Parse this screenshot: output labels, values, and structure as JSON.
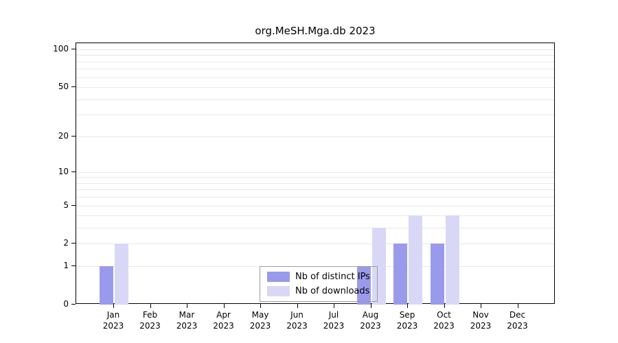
{
  "title": "org.MeSH.Mga.db 2023",
  "chart_data": {
    "type": "bar",
    "title": "org.MeSH.Mga.db 2023",
    "categories": [
      "Jan",
      "Feb",
      "Mar",
      "Apr",
      "May",
      "Jun",
      "Jul",
      "Aug",
      "Sep",
      "Oct",
      "Nov",
      "Dec"
    ],
    "year": "2023",
    "series": [
      {
        "name": "Nb of distinct IPs",
        "color": "#9a9aec",
        "values": [
          1,
          0,
          0,
          0,
          0,
          0,
          0,
          1,
          2,
          2,
          0,
          0
        ]
      },
      {
        "name": "Nb of downloads",
        "color": "#d8d8f6",
        "values": [
          2,
          0,
          0,
          0,
          0,
          0,
          0,
          3,
          4,
          4,
          0,
          0
        ]
      }
    ],
    "yticks": [
      0,
      1,
      2,
      5,
      10,
      20,
      50,
      100
    ],
    "minor_gridlines": [
      1,
      2,
      3,
      4,
      5,
      6,
      7,
      8,
      9,
      10,
      20,
      30,
      40,
      50,
      60,
      70,
      80,
      90,
      100
    ],
    "ylim": [
      0,
      100
    ],
    "scale": "log1p",
    "grid": true,
    "legend_position": "lower center"
  }
}
